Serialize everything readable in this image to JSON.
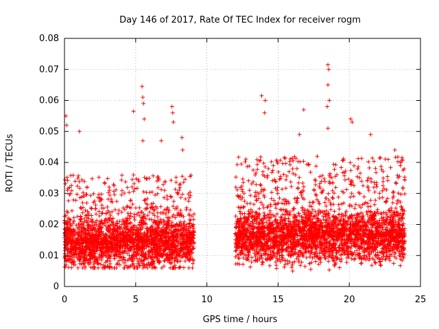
{
  "chart_data": {
    "type": "scatter",
    "title": "Day 146 of 2017, Rate Of TEC Index for receiver rogm",
    "xlabel": "GPS time / hours",
    "ylabel": "ROTI / TECUs",
    "xlim": [
      0,
      25
    ],
    "ylim": [
      0,
      0.08
    ],
    "grid": true,
    "x_ticks": [
      0,
      5,
      10,
      15,
      20,
      25
    ],
    "x_tick_labels": [
      "0",
      "5",
      "10",
      "15",
      "20",
      "25"
    ],
    "y_ticks": [
      0,
      0.01,
      0.02,
      0.03,
      0.04,
      0.05,
      0.06,
      0.07,
      0.08
    ],
    "y_tick_labels": [
      "0",
      "0.01",
      "0.02",
      "0.03",
      "0.04",
      "0.05",
      "0.06",
      "0.07",
      "0.08"
    ],
    "marker": "+",
    "color": "#ff0000",
    "series": [
      {
        "name": "ROTI",
        "segments": [
          {
            "x_start": 0.0,
            "x_end": 9.1,
            "median": 0.014,
            "spread_low": 0.006,
            "spread_high": 0.036
          },
          {
            "x_start": 12.0,
            "x_end": 23.9,
            "median": 0.016,
            "spread_low": 0.005,
            "spread_high": 0.042
          }
        ],
        "notable_points": [
          {
            "x": 0.1,
            "y": 0.055
          },
          {
            "x": 0.15,
            "y": 0.052
          },
          {
            "x": 1.05,
            "y": 0.05
          },
          {
            "x": 4.85,
            "y": 0.0565
          },
          {
            "x": 5.45,
            "y": 0.0645
          },
          {
            "x": 5.5,
            "y": 0.061
          },
          {
            "x": 5.55,
            "y": 0.059
          },
          {
            "x": 5.6,
            "y": 0.054
          },
          {
            "x": 5.5,
            "y": 0.047
          },
          {
            "x": 6.8,
            "y": 0.047
          },
          {
            "x": 7.55,
            "y": 0.058
          },
          {
            "x": 7.6,
            "y": 0.056
          },
          {
            "x": 7.65,
            "y": 0.053
          },
          {
            "x": 8.25,
            "y": 0.048
          },
          {
            "x": 8.3,
            "y": 0.044
          },
          {
            "x": 13.85,
            "y": 0.0615
          },
          {
            "x": 14.1,
            "y": 0.06
          },
          {
            "x": 14.05,
            "y": 0.056
          },
          {
            "x": 16.8,
            "y": 0.057
          },
          {
            "x": 16.5,
            "y": 0.049
          },
          {
            "x": 18.5,
            "y": 0.0715
          },
          {
            "x": 18.55,
            "y": 0.07
          },
          {
            "x": 18.5,
            "y": 0.065
          },
          {
            "x": 18.6,
            "y": 0.06
          },
          {
            "x": 18.45,
            "y": 0.058
          },
          {
            "x": 18.5,
            "y": 0.051
          },
          {
            "x": 20.1,
            "y": 0.054
          },
          {
            "x": 20.2,
            "y": 0.053
          },
          {
            "x": 21.5,
            "y": 0.049
          },
          {
            "x": 23.2,
            "y": 0.044
          }
        ]
      }
    ]
  }
}
